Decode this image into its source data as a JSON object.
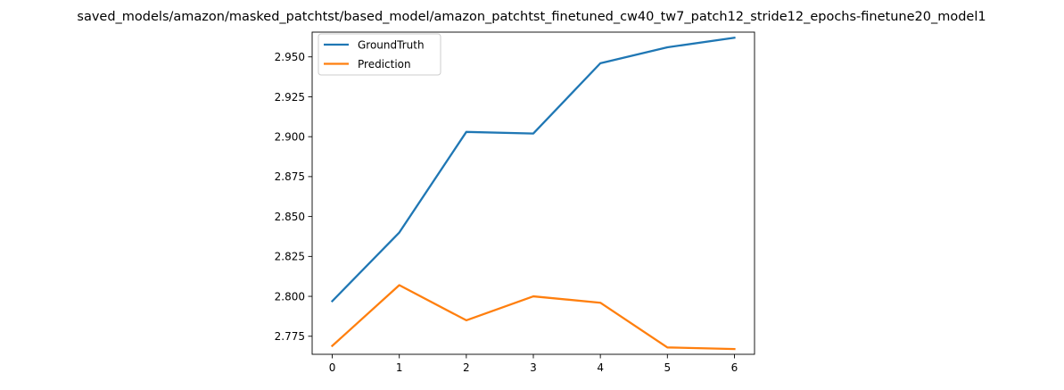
{
  "chart_data": {
    "type": "line",
    "title": "saved_models/amazon/masked_patchtst/based_model/amazon_patchtst_finetuned_cw40_tw7_patch12_stride12_epochs-finetune20_model1",
    "xlabel": "",
    "ylabel": "",
    "x": [
      0,
      1,
      2,
      3,
      4,
      5,
      6
    ],
    "x_tick_labels": [
      "0",
      "1",
      "2",
      "3",
      "4",
      "5",
      "6"
    ],
    "y_ticks": [
      2.775,
      2.8,
      2.825,
      2.85,
      2.875,
      2.9,
      2.925,
      2.95
    ],
    "y_tick_labels": [
      "2.775",
      "2.800",
      "2.825",
      "2.850",
      "2.875",
      "2.900",
      "2.925",
      "2.950"
    ],
    "xlim": [
      -0.3,
      6.3
    ],
    "ylim": [
      2.7637,
      2.9655
    ],
    "grid": false,
    "legend_position": "upper-left",
    "series": [
      {
        "name": "GroundTruth",
        "color": "#1f77b4",
        "values": [
          2.797,
          2.84,
          2.903,
          2.902,
          2.946,
          2.956,
          2.962
        ]
      },
      {
        "name": "Prediction",
        "color": "#ff7f0e",
        "values": [
          2.769,
          2.807,
          2.785,
          2.8,
          2.796,
          2.768,
          2.767
        ]
      }
    ]
  }
}
